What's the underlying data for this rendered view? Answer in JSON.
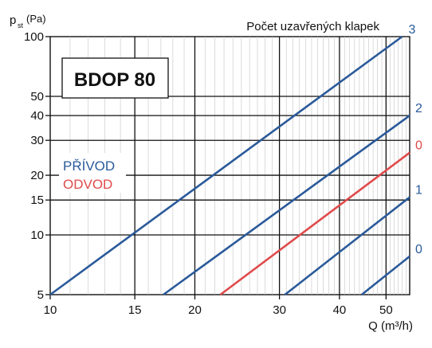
{
  "chart_data": {
    "type": "line",
    "title": "BDOP 80",
    "header_note": "Počet uzavřených klapek",
    "xlabel": "Q (m³/h)",
    "ylabel_main": "p",
    "ylabel_sub": "st",
    "ylabel_unit": "(Pa)",
    "x_scale": "log",
    "y_scale": "log",
    "xlim": [
      10,
      56
    ],
    "ylim": [
      5,
      100
    ],
    "x_ticks": [
      10,
      15,
      20,
      30,
      40,
      50
    ],
    "y_ticks": [
      5,
      10,
      15,
      20,
      30,
      40,
      50,
      100
    ],
    "grid": true,
    "legend": [
      {
        "label": "PŘÍVOD",
        "color": "#2a5a9a"
      },
      {
        "label": "ODVOD",
        "color": "#e04a4a"
      }
    ],
    "series": [
      {
        "name": "3",
        "color": "#2a5a9a",
        "x": [
          10,
          54
        ],
        "y": [
          5,
          100
        ]
      },
      {
        "name": "2",
        "color": "#2a5a9a",
        "x": [
          17.2,
          56
        ],
        "y": [
          5,
          40
        ]
      },
      {
        "name": "0",
        "color": "#e04a4a",
        "x": [
          22.6,
          56
        ],
        "y": [
          5,
          26
        ]
      },
      {
        "name": "1",
        "color": "#2a5a9a",
        "x": [
          30.8,
          56
        ],
        "y": [
          5,
          15.5
        ]
      },
      {
        "name": "0",
        "color": "#2a5a9a",
        "x": [
          44.5,
          56
        ],
        "y": [
          5,
          7.8
        ]
      }
    ]
  }
}
